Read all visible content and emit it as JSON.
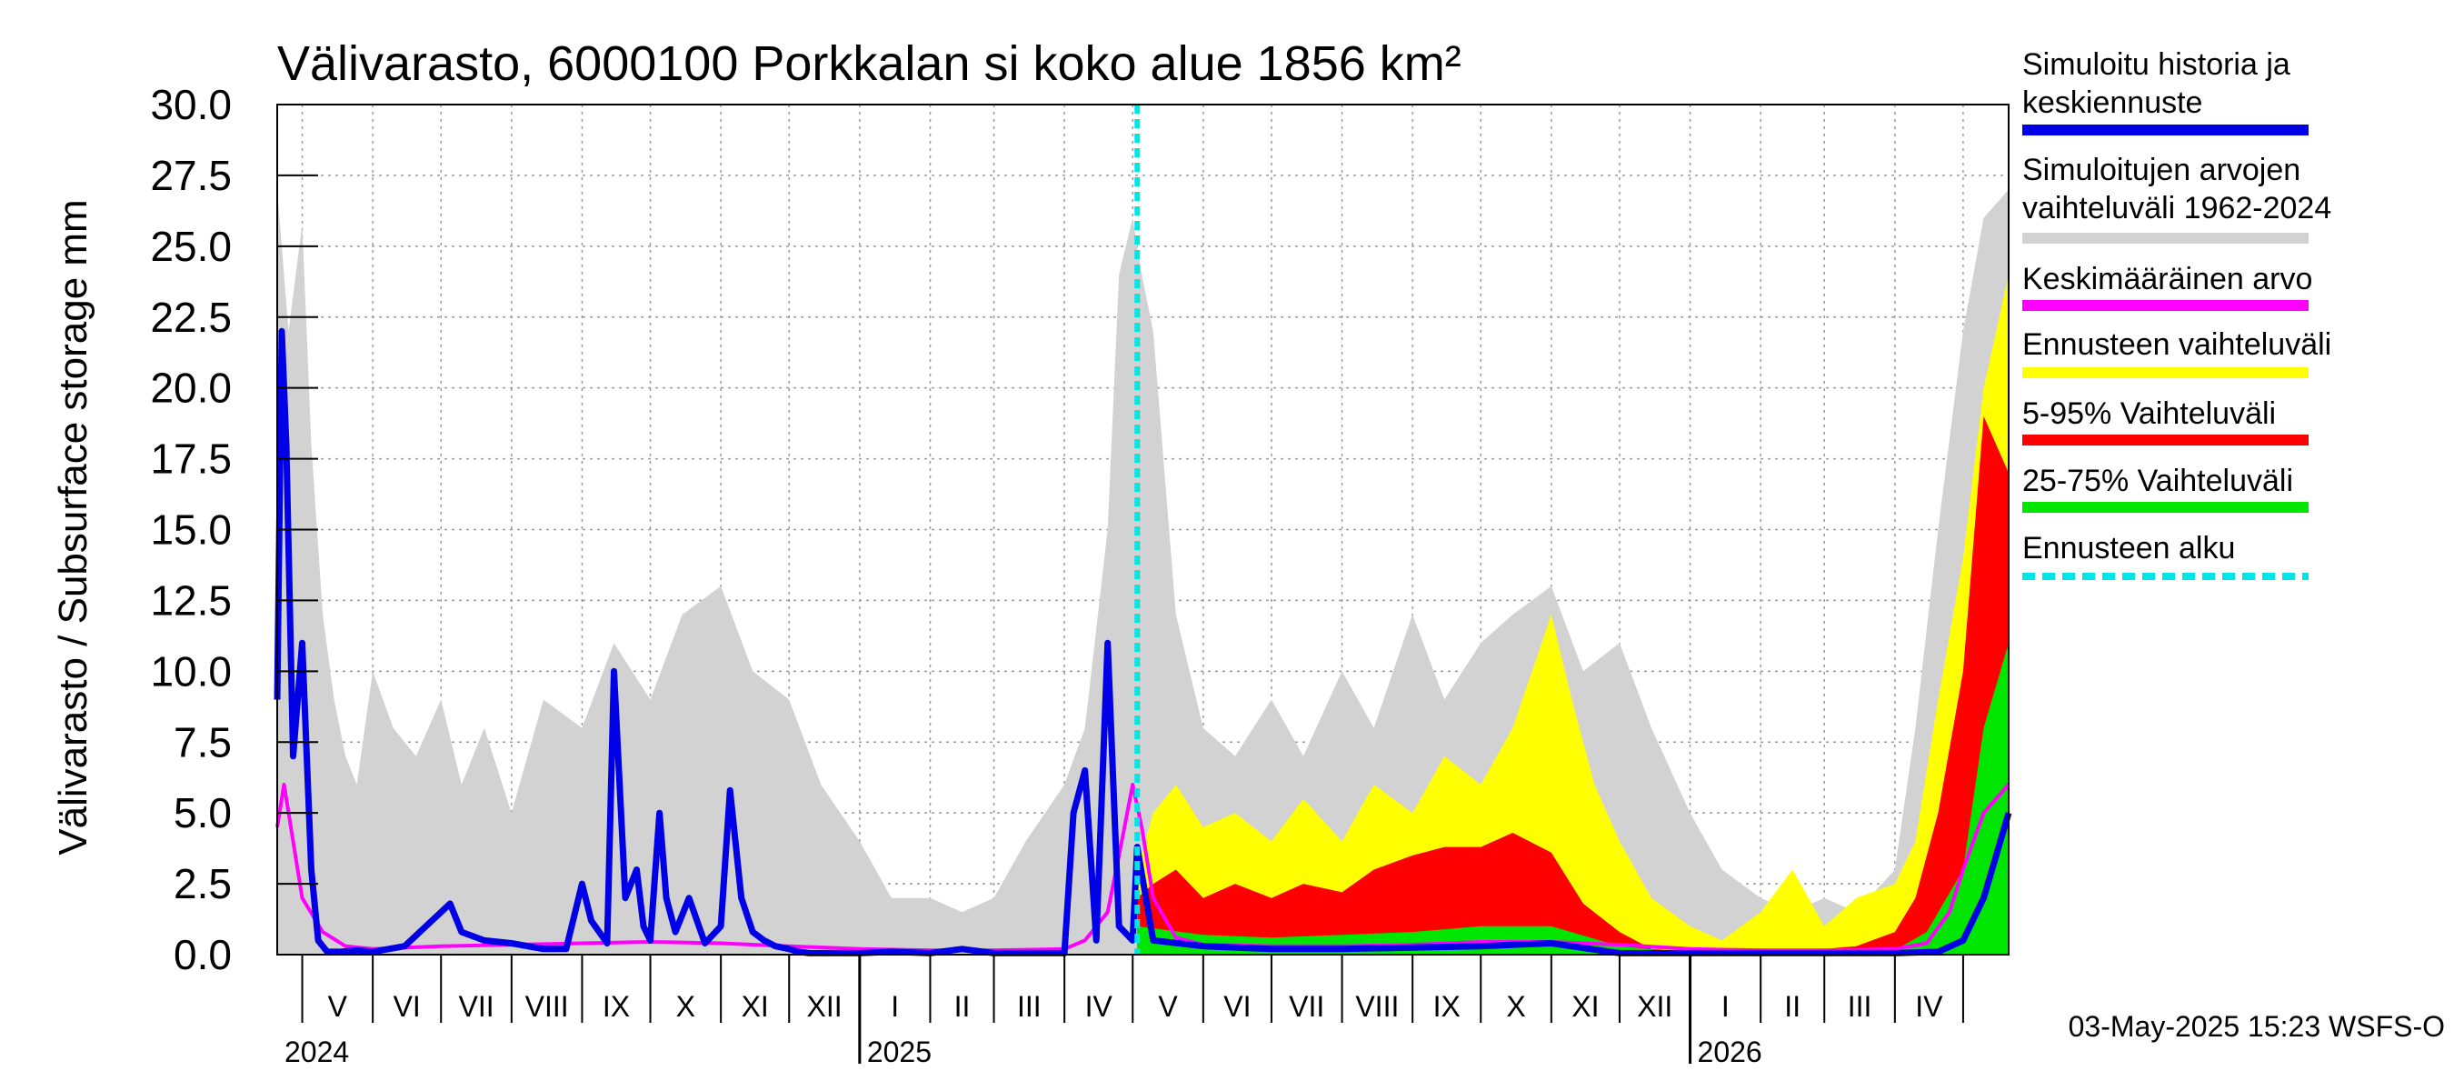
{
  "chart_data": {
    "type": "area",
    "title": "Välivarasto, 6000100 Porkkalan si koko alue 1856 km²",
    "ylabel": "Välivarasto / Subsurface storage  mm",
    "ylim": [
      0,
      30
    ],
    "yticks": [
      "0.0",
      "2.5",
      "5.0",
      "7.5",
      "10.0",
      "12.5",
      "15.0",
      "17.5",
      "20.0",
      "22.5",
      "25.0",
      "27.5",
      "30.0"
    ],
    "x_start": "2024-04-20",
    "x_end": "2026-05-21",
    "forecast_start": "2025-05-03",
    "months": [
      "V",
      "VI",
      "VII",
      "VIII",
      "IX",
      "X",
      "XI",
      "XII",
      "I",
      "II",
      "III",
      "IV",
      "V",
      "VI",
      "VII",
      "VIII",
      "IX",
      "X",
      "XI",
      "XII",
      "I",
      "II",
      "III",
      "IV"
    ],
    "month_starts": [
      "2024-05-01",
      "2024-06-01",
      "2024-07-01",
      "2024-08-01",
      "2024-09-01",
      "2024-10-01",
      "2024-11-01",
      "2024-12-01",
      "2025-01-01",
      "2025-02-01",
      "2025-03-01",
      "2025-04-01",
      "2025-05-01",
      "2025-06-01",
      "2025-07-01",
      "2025-08-01",
      "2025-09-01",
      "2025-10-01",
      "2025-11-01",
      "2025-12-01",
      "2026-01-01",
      "2026-02-01",
      "2026-03-01",
      "2026-04-01",
      "2026-05-01"
    ],
    "years": [
      {
        "label": "2024",
        "date": "2024-04-20"
      },
      {
        "label": "2025",
        "date": "2025-01-01"
      },
      {
        "label": "2026",
        "date": "2026-01-01"
      }
    ],
    "grid": true,
    "legend_position": "right",
    "colors": {
      "history": "#0000e6",
      "range": "#d2d2d2",
      "mean": "#ff00ff",
      "forecast_range": "#ffff00",
      "p5_95": "#ff0000",
      "p25_75": "#00e600",
      "forecast_start": "#00e5e5"
    },
    "legend": [
      {
        "key": "history",
        "lines": [
          "Simuloitu historia ja",
          "keskiennuste"
        ],
        "color": "#0000e6",
        "style": "solid"
      },
      {
        "key": "range",
        "lines": [
          "Simuloitujen arvojen",
          "vaihteluväli 1962-2024"
        ],
        "color": "#d2d2d2",
        "style": "solid"
      },
      {
        "key": "mean",
        "lines": [
          "Keskimääräinen arvo"
        ],
        "color": "#ff00ff",
        "style": "solid"
      },
      {
        "key": "forecast_range",
        "lines": [
          "Ennusteen vaihteluväli"
        ],
        "color": "#ffff00",
        "style": "solid"
      },
      {
        "key": "p5_95",
        "lines": [
          "5-95% Vaihteluväli"
        ],
        "color": "#ff0000",
        "style": "solid"
      },
      {
        "key": "p25_75",
        "lines": [
          "25-75% Vaihteluväli"
        ],
        "color": "#00e600",
        "style": "solid"
      },
      {
        "key": "forecast_start",
        "lines": [
          "Ennusteen alku"
        ],
        "color": "#00e5e5",
        "style": "dashed"
      }
    ],
    "series": {
      "range_max": {
        "x": [
          "2024-04-20",
          "2024-04-25",
          "2024-05-01",
          "2024-05-05",
          "2024-05-10",
          "2024-05-15",
          "2024-05-20",
          "2024-05-25",
          "2024-06-01",
          "2024-06-10",
          "2024-06-20",
          "2024-07-01",
          "2024-07-10",
          "2024-07-20",
          "2024-08-01",
          "2024-08-15",
          "2024-09-01",
          "2024-09-15",
          "2024-10-01",
          "2024-10-15",
          "2024-11-01",
          "2024-11-15",
          "2024-12-01",
          "2024-12-15",
          "2025-01-01",
          "2025-01-15",
          "2025-02-01",
          "2025-02-15",
          "2025-03-01",
          "2025-03-15",
          "2025-04-01",
          "2025-04-10",
          "2025-04-20",
          "2025-04-25",
          "2025-05-01",
          "2025-05-05",
          "2025-05-10",
          "2025-05-20",
          "2025-06-01",
          "2025-06-15",
          "2025-07-01",
          "2025-07-15",
          "2025-08-01",
          "2025-08-15",
          "2025-09-01",
          "2025-09-15",
          "2025-10-01",
          "2025-10-15",
          "2025-11-01",
          "2025-11-15",
          "2025-12-01",
          "2025-12-15",
          "2026-01-01",
          "2026-01-15",
          "2026-02-01",
          "2026-02-15",
          "2026-03-01",
          "2026-03-15",
          "2026-04-01",
          "2026-04-10",
          "2026-04-20",
          "2026-05-01",
          "2026-05-10",
          "2026-05-21"
        ],
        "y": [
          27,
          22,
          25.8,
          18,
          12,
          9,
          7,
          6,
          10,
          8,
          7,
          9,
          6,
          8,
          5,
          9,
          8,
          11,
          9,
          12,
          13,
          10,
          9,
          6,
          4,
          2,
          2,
          1.5,
          2,
          4,
          6,
          8,
          15,
          24,
          26,
          24,
          22,
          12,
          8,
          7,
          9,
          7,
          10,
          8,
          12,
          9,
          11,
          12,
          13,
          10,
          11,
          8,
          5,
          3,
          2,
          1.5,
          2,
          1.5,
          3,
          8,
          15,
          22,
          26,
          27
        ]
      },
      "forecast_max": {
        "x": [
          "2025-05-03",
          "2025-05-10",
          "2025-05-20",
          "2025-06-01",
          "2025-06-15",
          "2025-07-01",
          "2025-07-15",
          "2025-08-01",
          "2025-08-15",
          "2025-09-01",
          "2025-09-15",
          "2025-10-01",
          "2025-10-15",
          "2025-11-01",
          "2025-11-10",
          "2025-11-20",
          "2025-12-01",
          "2025-12-15",
          "2026-01-01",
          "2026-01-15",
          "2026-02-01",
          "2026-02-15",
          "2026-03-01",
          "2026-03-15",
          "2026-04-01",
          "2026-04-10",
          "2026-04-20",
          "2026-05-01",
          "2026-05-10",
          "2026-05-21"
        ],
        "y": [
          3,
          5,
          6,
          4.5,
          5,
          4,
          5.5,
          4,
          6,
          5,
          7,
          6,
          8,
          12,
          9,
          6,
          4,
          2,
          1,
          0.5,
          1.5,
          3,
          1,
          2,
          2.5,
          4,
          9,
          14,
          20,
          24
        ]
      },
      "p5_95_max": {
        "x": [
          "2025-05-03",
          "2025-05-10",
          "2025-05-20",
          "2025-06-01",
          "2025-06-15",
          "2025-07-01",
          "2025-07-15",
          "2025-08-01",
          "2025-08-15",
          "2025-09-01",
          "2025-09-15",
          "2025-10-01",
          "2025-10-15",
          "2025-11-01",
          "2025-11-15",
          "2025-12-01",
          "2025-12-15",
          "2026-01-01",
          "2026-02-01",
          "2026-03-01",
          "2026-03-15",
          "2026-04-01",
          "2026-04-10",
          "2026-04-20",
          "2026-05-01",
          "2026-05-10",
          "2026-05-21"
        ],
        "y": [
          2,
          2.5,
          3,
          2,
          2.5,
          2,
          2.5,
          2.2,
          3,
          3.5,
          3.8,
          3.8,
          4.3,
          3.6,
          1.8,
          0.8,
          0.2,
          0.1,
          0.1,
          0.2,
          0.3,
          0.8,
          2,
          5,
          10,
          19,
          17
        ]
      },
      "p25_75_max": {
        "x": [
          "2025-05-03",
          "2025-06-01",
          "2025-07-01",
          "2025-08-01",
          "2025-09-01",
          "2025-10-01",
          "2025-11-01",
          "2025-12-01",
          "2026-01-01",
          "2026-03-01",
          "2026-04-01",
          "2026-04-15",
          "2026-05-01",
          "2026-05-10",
          "2026-05-21"
        ],
        "y": [
          1,
          0.7,
          0.6,
          0.7,
          0.8,
          1,
          1,
          0.3,
          0.05,
          0.05,
          0.15,
          0.8,
          3,
          8,
          11
        ]
      },
      "history": {
        "x": [
          "2024-04-20",
          "2024-04-22",
          "2024-04-24",
          "2024-04-27",
          "2024-05-01",
          "2024-05-05",
          "2024-05-08",
          "2024-05-12",
          "2024-05-18",
          "2024-05-25",
          "2024-06-01",
          "2024-06-15",
          "2024-07-01",
          "2024-07-05",
          "2024-07-10",
          "2024-07-20",
          "2024-08-01",
          "2024-08-15",
          "2024-08-25",
          "2024-09-01",
          "2024-09-05",
          "2024-09-12",
          "2024-09-15",
          "2024-09-20",
          "2024-09-25",
          "2024-09-28",
          "2024-10-01",
          "2024-10-05",
          "2024-10-08",
          "2024-10-12",
          "2024-10-18",
          "2024-10-25",
          "2024-11-01",
          "2024-11-05",
          "2024-11-10",
          "2024-11-15",
          "2024-11-20",
          "2024-11-25",
          "2024-12-01",
          "2024-12-05",
          "2024-12-10",
          "2024-12-20",
          "2025-01-01",
          "2025-01-15",
          "2025-02-01",
          "2025-02-15",
          "2025-03-01",
          "2025-03-15",
          "2025-04-01",
          "2025-04-05",
          "2025-04-10",
          "2025-04-15",
          "2025-04-20",
          "2025-04-25",
          "2025-05-01",
          "2025-05-03",
          "2025-05-10",
          "2025-06-01",
          "2025-07-01",
          "2025-08-01",
          "2025-09-01",
          "2025-10-01",
          "2025-11-01",
          "2025-12-01",
          "2026-01-01",
          "2026-02-01",
          "2026-03-01",
          "2026-04-01",
          "2026-04-20",
          "2026-05-01",
          "2026-05-10",
          "2026-05-21"
        ],
        "y": [
          9,
          22,
          18,
          7,
          11,
          3,
          0.5,
          0.1,
          0.1,
          0.15,
          0.1,
          0.3,
          1.5,
          1.8,
          0.8,
          0.5,
          0.4,
          0.2,
          0.2,
          2.5,
          1.2,
          0.4,
          10,
          2,
          3,
          1,
          0.5,
          5,
          2,
          0.8,
          2,
          0.4,
          1,
          5.8,
          2,
          0.8,
          0.5,
          0.3,
          0.2,
          0.1,
          0.05,
          0.05,
          0.05,
          0.1,
          0.05,
          0.2,
          0.05,
          0.05,
          0.05,
          5,
          6.5,
          0.5,
          11,
          1,
          0.5,
          3.8,
          0.5,
          0.3,
          0.2,
          0.2,
          0.25,
          0.3,
          0.4,
          0.05,
          0.05,
          0.05,
          0.05,
          0.05,
          0.1,
          0.5,
          2,
          5
        ]
      },
      "mean": {
        "x": [
          "2024-04-20",
          "2024-04-23",
          "2024-04-27",
          "2024-05-01",
          "2024-05-10",
          "2024-05-20",
          "2024-06-01",
          "2024-07-01",
          "2024-08-01",
          "2024-09-01",
          "2024-10-01",
          "2024-11-01",
          "2024-12-01",
          "2025-01-01",
          "2025-02-01",
          "2025-03-01",
          "2025-04-01",
          "2025-04-10",
          "2025-04-20",
          "2025-04-25",
          "2025-05-01",
          "2025-05-05",
          "2025-05-10",
          "2025-05-20",
          "2025-06-01",
          "2025-07-01",
          "2025-08-01",
          "2025-09-01",
          "2025-10-01",
          "2025-11-01",
          "2025-12-01",
          "2026-01-01",
          "2026-02-01",
          "2026-03-01",
          "2026-04-01",
          "2026-04-15",
          "2026-04-25",
          "2026-05-01",
          "2026-05-10",
          "2026-05-21"
        ],
        "y": [
          4.5,
          6,
          4,
          2,
          0.8,
          0.3,
          0.2,
          0.3,
          0.35,
          0.4,
          0.45,
          0.4,
          0.3,
          0.2,
          0.15,
          0.15,
          0.2,
          0.5,
          1.5,
          3.5,
          6,
          4.5,
          2,
          0.6,
          0.35,
          0.3,
          0.3,
          0.35,
          0.45,
          0.45,
          0.35,
          0.2,
          0.15,
          0.15,
          0.2,
          0.4,
          1.5,
          3,
          5,
          6
        ]
      }
    }
  },
  "footer": {
    "timestamp": "03-May-2025 15:23 WSFS-O"
  }
}
